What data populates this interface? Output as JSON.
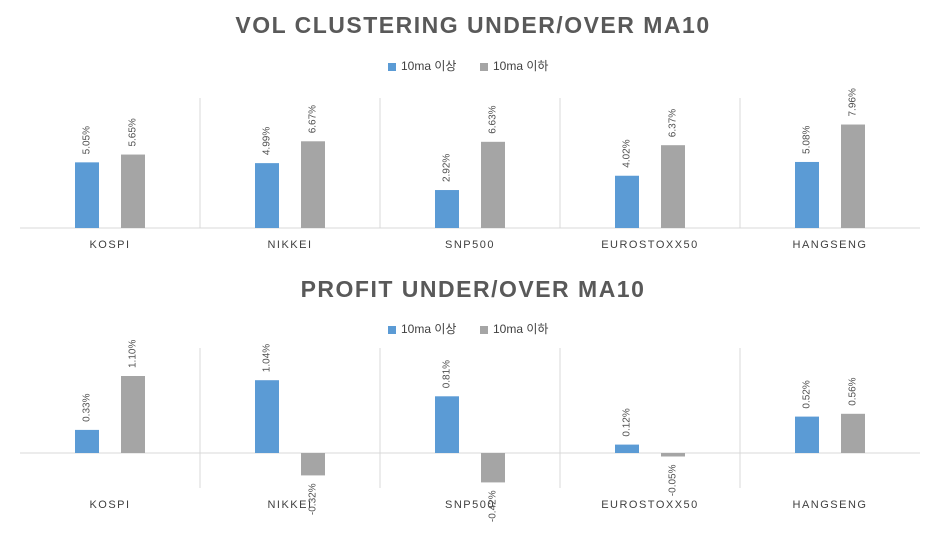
{
  "chart_data": [
    {
      "type": "bar",
      "title": "VOL CLUSTERING UNDER/OVER MA10",
      "categories": [
        "KOSPI",
        "NIKKEI",
        "SNP500",
        "EUROSTOXX50",
        "HANGSENG"
      ],
      "series": [
        {
          "name": "10ma 이상",
          "color": "#5b9bd5",
          "values": [
            5.05,
            4.99,
            2.92,
            4.02,
            5.08
          ],
          "value_labels": [
            "5.05%",
            "4.99%",
            "2.92%",
            "4.02%",
            "5.08%"
          ]
        },
        {
          "name": "10ma 이하",
          "color": "#a5a5a5",
          "values": [
            5.65,
            6.67,
            6.63,
            6.37,
            7.96
          ],
          "value_labels": [
            "5.65%",
            "6.67%",
            "6.63%",
            "6.37%",
            "7.96%"
          ]
        }
      ],
      "ylim": [
        0,
        10
      ],
      "legend": "top"
    },
    {
      "type": "bar",
      "title": "PROFIT UNDER/OVER MA10",
      "categories": [
        "KOSPI",
        "NIKKEI",
        "SNP500",
        "EUROSTOXX50",
        "HANGSENG"
      ],
      "series": [
        {
          "name": "10ma 이상",
          "color": "#5b9bd5",
          "values": [
            0.33,
            1.04,
            0.81,
            0.12,
            0.52
          ],
          "value_labels": [
            "0.33%",
            "1.04%",
            "0.81%",
            "0.12%",
            "0.52%"
          ]
        },
        {
          "name": "10ma 이하",
          "color": "#a5a5a5",
          "values": [
            1.1,
            -0.32,
            -0.42,
            -0.05,
            0.56
          ],
          "value_labels": [
            "1.10%",
            "-0.32%",
            "-0.42%",
            "-0.05%",
            "0.56%"
          ]
        }
      ],
      "ylim": [
        -0.5,
        1.5
      ],
      "legend": "top"
    }
  ]
}
